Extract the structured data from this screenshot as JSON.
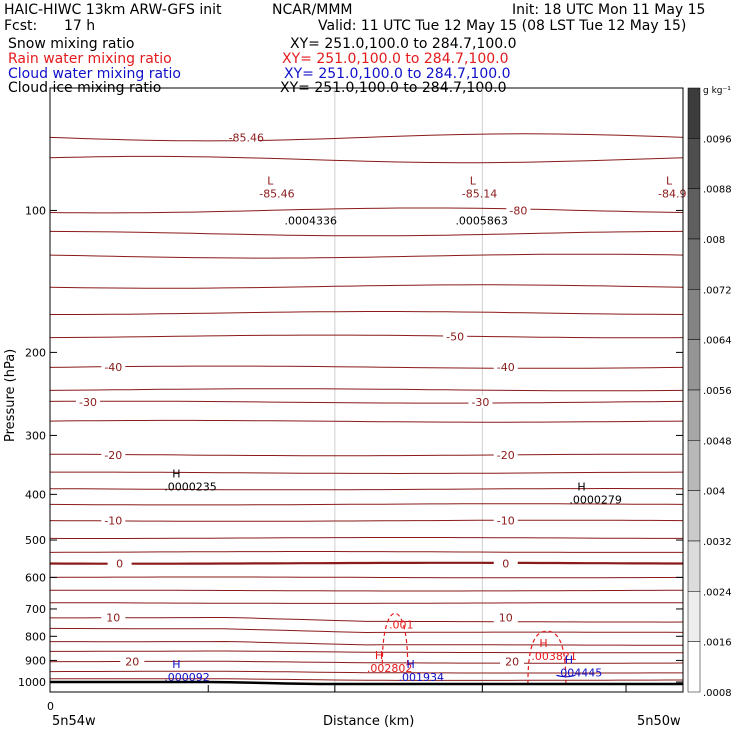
{
  "header": {
    "model": "HAIC-HIWC 13km ARW-GFS init",
    "center": "NCAR/MMM",
    "init": "Init: 18 UTC Mon 11 May 15",
    "fcst_label": "Fcst:",
    "fcst_value": "17 h",
    "valid": "Valid: 11 UTC Tue 12 May 15 (08 LST Tue 12 May 15)",
    "fields": [
      {
        "name": "Snow mixing ratio",
        "xy": "XY= 251.0,100.0 to 284.7,100.0",
        "color": "#000000"
      },
      {
        "name": "Rain water mixing ratio",
        "xy": "XY= 251.0,100.0 to 284.7,100.0",
        "color": "#e41a1c"
      },
      {
        "name": "Cloud water mixing ratio",
        "xy": "XY= 251.0,100.0 to 284.7,100.0",
        "color": "#1010c8"
      },
      {
        "name": "Cloud ice mixing ratio",
        "xy": "XY= 251.0,100.0 to 284.7,100.0",
        "color": "#000000"
      }
    ]
  },
  "colorbar": {
    "unit": "g kg⁻¹",
    "ticks": [
      ".0096",
      ".0088",
      ".008",
      ".0072",
      ".0064",
      ".0056",
      ".0048",
      ".004",
      ".0032",
      ".0024",
      ".0016",
      ".0008"
    ]
  },
  "chart_data": {
    "type": "contour",
    "ylabel": "Pressure (hPa)",
    "xlabel": "Distance (km)",
    "x_tick_label": "0",
    "x_left_label": "5n54w",
    "x_right_label": "5n50w",
    "y_ticks": [
      100,
      200,
      300,
      400,
      500,
      600,
      700,
      800,
      900,
      1000
    ],
    "y_scale": "log",
    "ylim": [
      1050,
      55
    ],
    "xlim": [
      0,
      1
    ],
    "temperature_contours": [
      {
        "level": "-85",
        "label": "-85.46",
        "p": 70
      },
      {
        "level": "-80",
        "label": "-80",
        "p": 100
      },
      {
        "level": "-50",
        "label": "-50",
        "p": 185
      },
      {
        "level": "-40",
        "label": "-40",
        "p": 215
      },
      {
        "level": "-30",
        "label": "-30",
        "p": 255
      },
      {
        "level": "-20",
        "label": "-20",
        "p": 330
      },
      {
        "level": "-10",
        "label": "-10",
        "p": 455
      },
      {
        "level": "0",
        "label": "0",
        "p": 560
      },
      {
        "level": "10",
        "label": "10",
        "p": 730
      },
      {
        "level": "20",
        "label": "20",
        "p": 905
      }
    ],
    "extrema": [
      {
        "kind": "L",
        "value": "-85.46",
        "x": 0.34,
        "p": 92,
        "color": "#8b1a1a"
      },
      {
        "kind": "L",
        "value": "-85.14",
        "x": 0.66,
        "p": 92,
        "color": "#8b1a1a"
      },
      {
        "kind": "L",
        "value": "-84.9",
        "x": 0.97,
        "p": 92,
        "color": "#8b1a1a"
      },
      {
        "kind": "",
        "value": ".0004336",
        "x": 0.38,
        "p": 105,
        "color": "#000000"
      },
      {
        "kind": "",
        "value": ".0005863",
        "x": 0.65,
        "p": 105,
        "color": "#000000"
      },
      {
        "kind": "H",
        "value": ".0000235",
        "x": 0.19,
        "p": 385,
        "color": "#000000"
      },
      {
        "kind": "H",
        "value": ".0000279",
        "x": 0.83,
        "p": 410,
        "color": "#000000"
      },
      {
        "kind": "H",
        "value": ".002802",
        "x": 0.51,
        "p": 935,
        "color": "#e41a1c"
      },
      {
        "kind": "H",
        "value": ".003821",
        "x": 0.77,
        "p": 880,
        "color": "#e41a1c"
      },
      {
        "kind": "H",
        "value": ".001934",
        "x": 0.56,
        "p": 975,
        "color": "#1010c8"
      },
      {
        "kind": "H",
        "value": ".004445",
        "x": 0.81,
        "p": 955,
        "color": "#1010c8"
      },
      {
        "kind": "H",
        "value": ".000092",
        "x": 0.19,
        "p": 975,
        "color": "#1010c8"
      }
    ],
    "rain_contour_label": ".001",
    "surface_pressure_hpa": [
      [
        0,
        1000
      ],
      [
        0.25,
        1000
      ],
      [
        0.45,
        1010
      ],
      [
        1,
        1010
      ]
    ]
  }
}
